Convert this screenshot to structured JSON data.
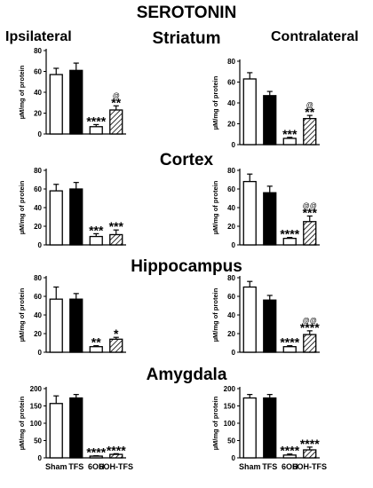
{
  "figure": {
    "title": "SEROTONIN",
    "left_column": "Ipsilateral",
    "right_column": "Contralateral"
  },
  "chart_data": [
    {
      "type": "bar",
      "region": "Striatum",
      "side": "Ipsilateral",
      "title": "Striatum",
      "ylabel": "µM/mg of protein",
      "ylim": [
        0,
        80
      ],
      "yticks": [
        0,
        20,
        40,
        60,
        80
      ],
      "categories": [
        "Sham",
        "TFS",
        "6OH",
        "6OH-TFS"
      ],
      "values": [
        57,
        61,
        7,
        23
      ],
      "errors": [
        6,
        7,
        2,
        4
      ],
      "annotations": [
        "",
        "",
        "****",
        "**"
      ],
      "annotations2": [
        "",
        "",
        "",
        "@"
      ],
      "show_categories": false
    },
    {
      "type": "bar",
      "region": "Striatum",
      "side": "Contralateral",
      "ylabel": "µM/mg of protein",
      "ylim": [
        0,
        80
      ],
      "yticks": [
        0,
        20,
        40,
        60,
        80
      ],
      "categories": [
        "Sham",
        "TFS",
        "6OH",
        "6OH-TFS"
      ],
      "values": [
        63,
        47,
        6,
        25
      ],
      "errors": [
        6,
        4,
        1,
        3
      ],
      "annotations": [
        "",
        "",
        "***",
        "**"
      ],
      "annotations2": [
        "",
        "",
        "",
        "@"
      ],
      "show_categories": false
    },
    {
      "type": "bar",
      "region": "Cortex",
      "side": "Ipsilateral",
      "title": "Cortex",
      "ylabel": "µM/mg of protein",
      "ylim": [
        0,
        80
      ],
      "yticks": [
        0,
        20,
        40,
        60,
        80
      ],
      "categories": [
        "Sham",
        "TFS",
        "6OH",
        "6OH-TFS"
      ],
      "values": [
        58,
        60,
        9,
        11
      ],
      "errors": [
        7,
        7,
        3,
        5
      ],
      "annotations": [
        "",
        "",
        "***",
        "***"
      ],
      "annotations2": [
        "",
        "",
        "",
        ""
      ],
      "show_categories": false
    },
    {
      "type": "bar",
      "region": "Cortex",
      "side": "Contralateral",
      "ylabel": "µM/mg of protein",
      "ylim": [
        0,
        80
      ],
      "yticks": [
        0,
        20,
        40,
        60,
        80
      ],
      "categories": [
        "Sham",
        "TFS",
        "6OH",
        "6OH-TFS"
      ],
      "values": [
        68,
        56,
        7,
        25
      ],
      "errors": [
        8,
        7,
        1,
        6
      ],
      "annotations": [
        "",
        "",
        "****",
        "***"
      ],
      "annotations2": [
        "",
        "",
        "",
        "@@"
      ],
      "show_categories": false
    },
    {
      "type": "bar",
      "region": "Hippocampus",
      "side": "Ipsilateral",
      "title": "Hippocampus",
      "ylabel": "µM/mg of protein",
      "ylim": [
        0,
        80
      ],
      "yticks": [
        0,
        20,
        40,
        60,
        80
      ],
      "categories": [
        "Sham",
        "TFS",
        "6OH",
        "6OH-TFS"
      ],
      "values": [
        57,
        57,
        6,
        14
      ],
      "errors": [
        13,
        6,
        1,
        2
      ],
      "annotations": [
        "",
        "",
        "**",
        "*"
      ],
      "annotations2": [
        "",
        "",
        "",
        ""
      ],
      "show_categories": false
    },
    {
      "type": "bar",
      "region": "Hippocampus",
      "side": "Contralateral",
      "ylabel": "µM/mg of protein",
      "ylim": [
        0,
        80
      ],
      "yticks": [
        0,
        20,
        40,
        60,
        80
      ],
      "categories": [
        "Sham",
        "TFS",
        "6OH",
        "6OH-TFS"
      ],
      "values": [
        70,
        56,
        6,
        19
      ],
      "errors": [
        6,
        5,
        1,
        4
      ],
      "annotations": [
        "",
        "",
        "****",
        "****"
      ],
      "annotations2": [
        "",
        "",
        "",
        "@@"
      ],
      "show_categories": false
    },
    {
      "type": "bar",
      "region": "Amygdala",
      "side": "Ipsilateral",
      "title": "Amygdala",
      "ylabel": "µM/mg of protein",
      "ylim": [
        0,
        200
      ],
      "yticks": [
        0,
        50,
        100,
        150,
        200
      ],
      "categories": [
        "Sham",
        "TFS",
        "6OH",
        "6OH-TFS"
      ],
      "values": [
        157,
        173,
        5,
        10
      ],
      "errors": [
        22,
        10,
        1,
        2
      ],
      "annotations": [
        "",
        "",
        "****",
        "****"
      ],
      "annotations2": [
        "",
        "",
        "",
        ""
      ],
      "show_categories": true
    },
    {
      "type": "bar",
      "region": "Amygdala",
      "side": "Contralateral",
      "ylabel": "µM/mg of protein",
      "ylim": [
        0,
        200
      ],
      "yticks": [
        0,
        50,
        100,
        150,
        200
      ],
      "categories": [
        "Sham",
        "TFS",
        "6OH",
        "6OH-TFS"
      ],
      "values": [
        173,
        173,
        8,
        23
      ],
      "errors": [
        10,
        10,
        3,
        8
      ],
      "annotations": [
        "",
        "",
        "****",
        "****"
      ],
      "annotations2": [
        "",
        "",
        "",
        ""
      ],
      "show_categories": true
    }
  ]
}
